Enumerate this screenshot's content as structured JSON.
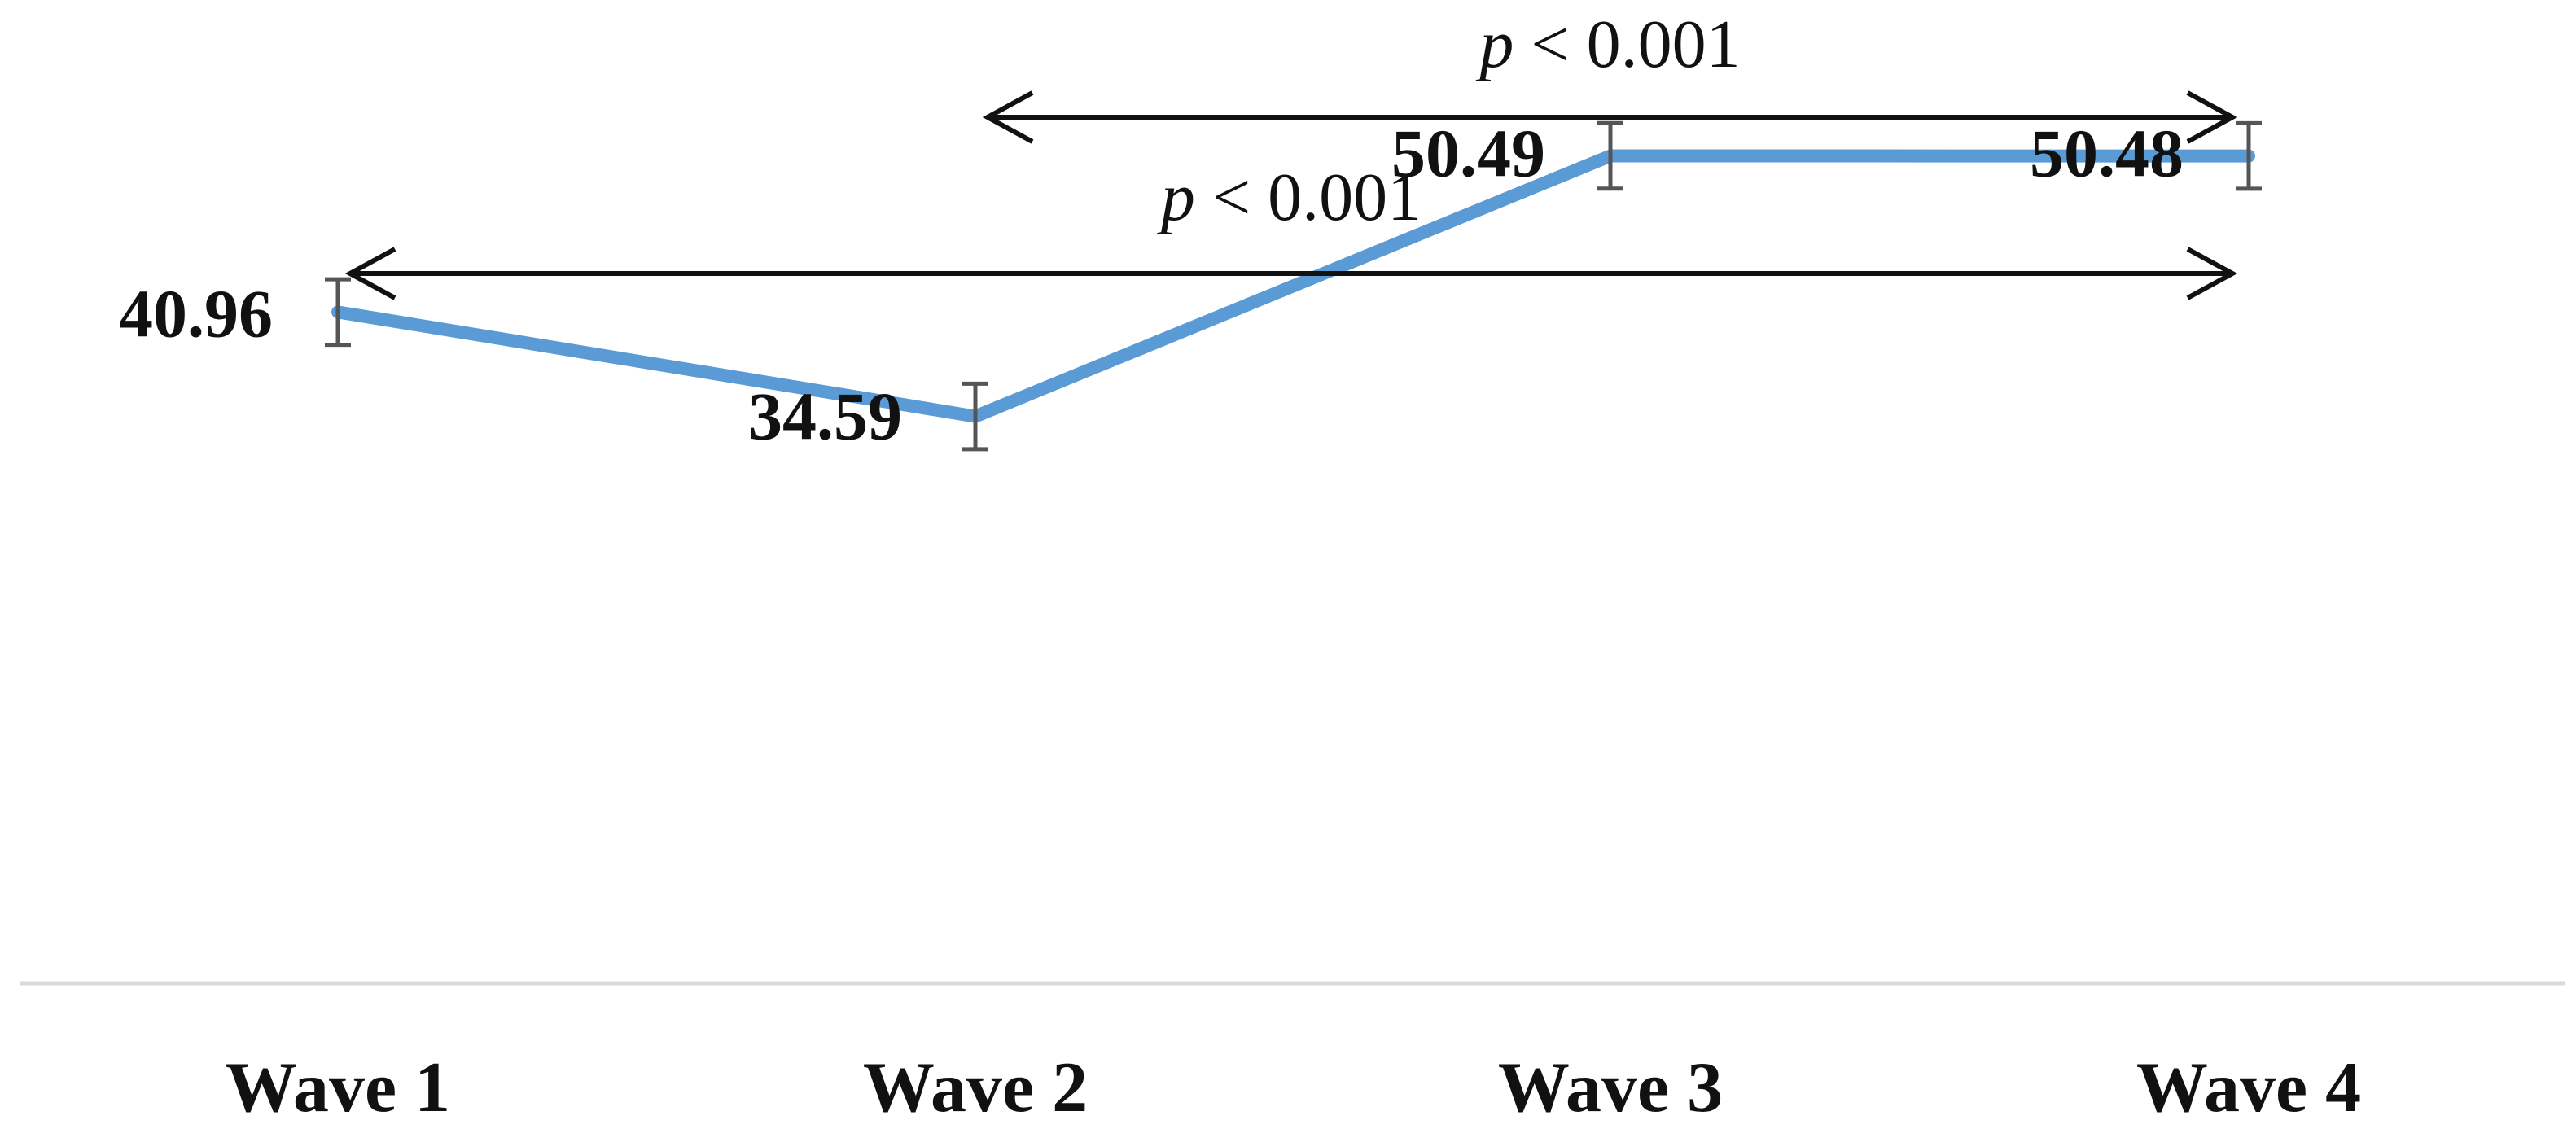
{
  "chart_data": {
    "type": "line",
    "categories": [
      "Wave 1",
      "Wave 2",
      "Wave 3",
      "Wave 4"
    ],
    "series": [
      {
        "values": [
          40.96,
          34.59,
          50.49,
          50.48
        ],
        "labels": [
          "40.96",
          "34.59",
          "50.49",
          "50.48"
        ],
        "error": [
          2.0,
          2.0,
          2.0,
          2.0
        ],
        "color": "#5b9bd5"
      }
    ],
    "error_bar_color": "#555555",
    "axis_color": "#d9d9d9",
    "ylim": [
      0,
      60
    ],
    "grid": false,
    "annotations": [
      {
        "text_italic": "p",
        "text_rest": " < 0.001",
        "from": "Wave 2",
        "to": "Wave 4"
      },
      {
        "text_italic": "p",
        "text_rest": " < 0.001",
        "from": "Wave 1",
        "to": "Wave 4"
      }
    ]
  }
}
